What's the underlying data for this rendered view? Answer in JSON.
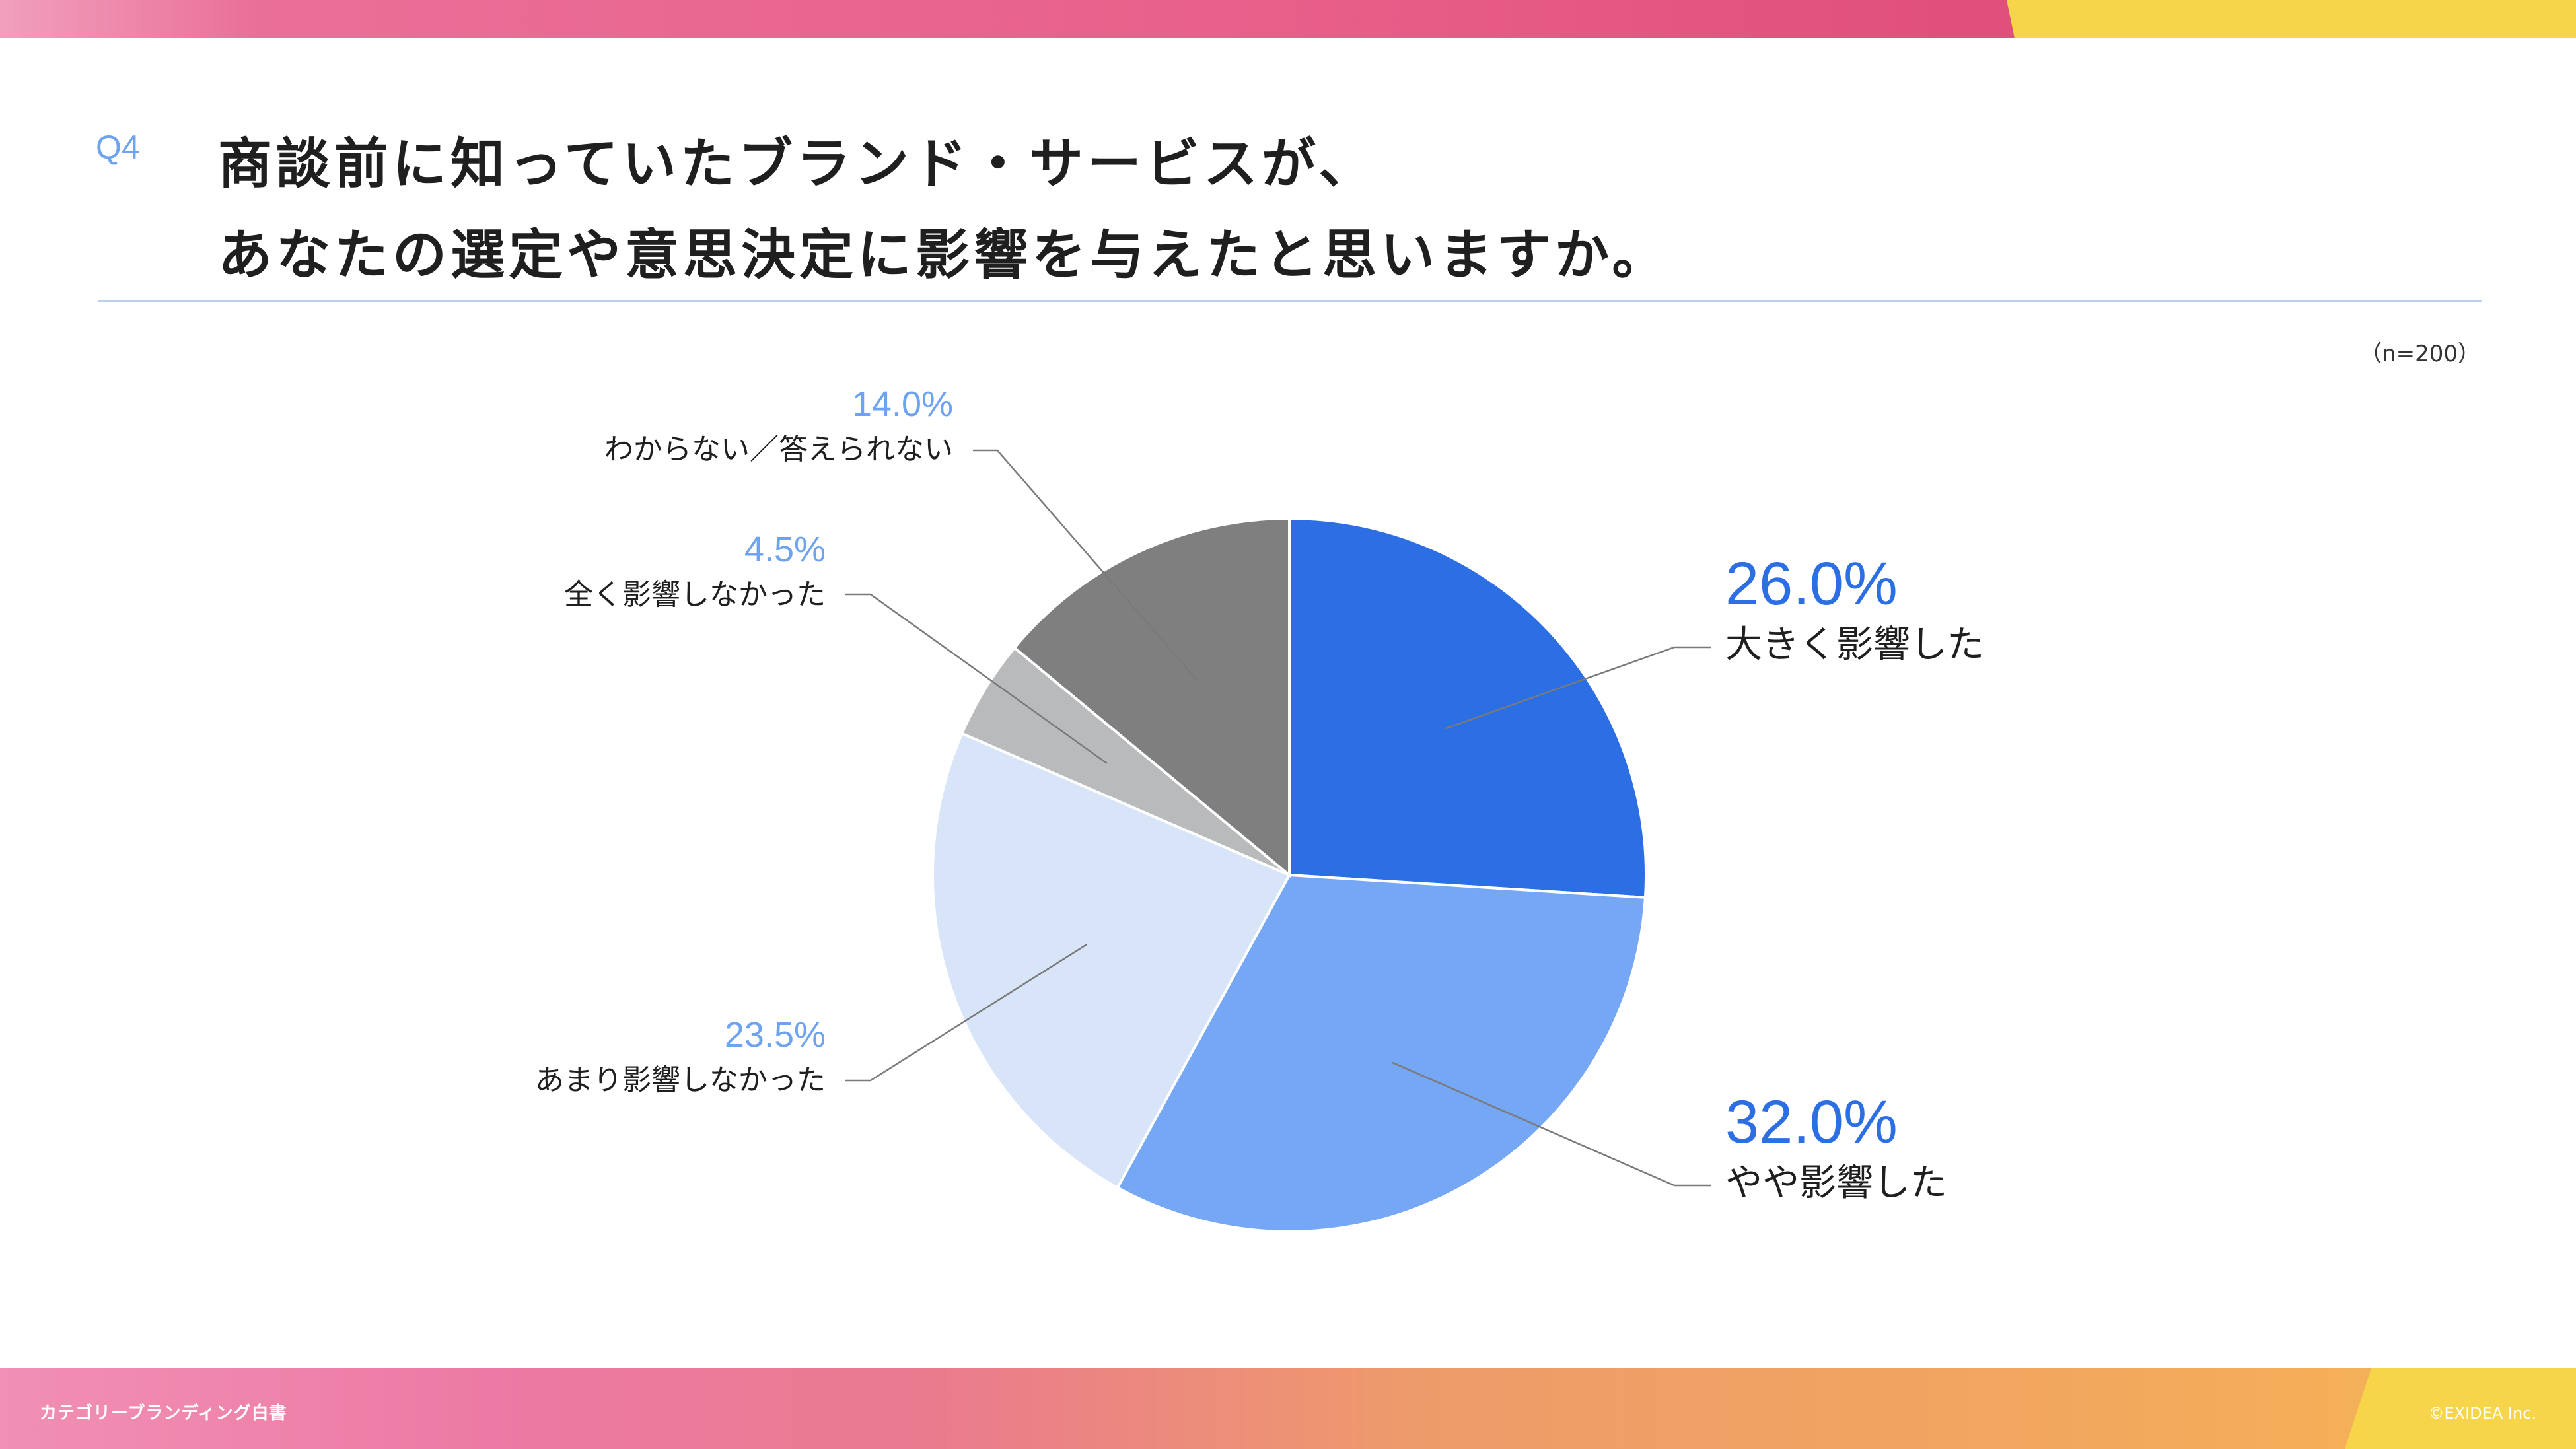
{
  "header": {
    "question_label": "Q4",
    "title_line1": "商談前に知っていたブランド・サービスが、",
    "title_line2": "あなたの選定や意思決定に影響を与えたと思いますか。",
    "sample_size": "（n=200）"
  },
  "footer": {
    "left": "カテゴリーブランディング白書",
    "right": "©EXIDEA Inc."
  },
  "colors": {
    "accent_blue": "#2c6fe4",
    "label_light_blue": "#6da3ef",
    "pink": "#e85f8a",
    "yellow": "#f7d54b"
  },
  "chart_data": {
    "type": "pie",
    "start_angle": "12 o'clock",
    "direction": "clockwise",
    "slices": [
      {
        "label": "大きく影響した",
        "value": 26.0,
        "value_label": "26.0%",
        "color": "#2c6fe4",
        "label_color": "#2c6fe4"
      },
      {
        "label": "やや影響した",
        "value": 32.0,
        "value_label": "32.0%",
        "color": "#75a7f5",
        "label_color": "#2c6fe4"
      },
      {
        "label": "あまり影響しなかった",
        "value": 23.5,
        "value_label": "23.5%",
        "color": "#d8e5f9",
        "label_color": "#6da3ef"
      },
      {
        "label": "全く影響しなかった",
        "value": 4.5,
        "value_label": "4.5%",
        "color": "#b9babc",
        "label_color": "#6da3ef"
      },
      {
        "label": "わからない／答えられない",
        "value": 14.0,
        "value_label": "14.0%",
        "color": "#7f7f7f",
        "label_color": "#6da3ef"
      }
    ]
  }
}
